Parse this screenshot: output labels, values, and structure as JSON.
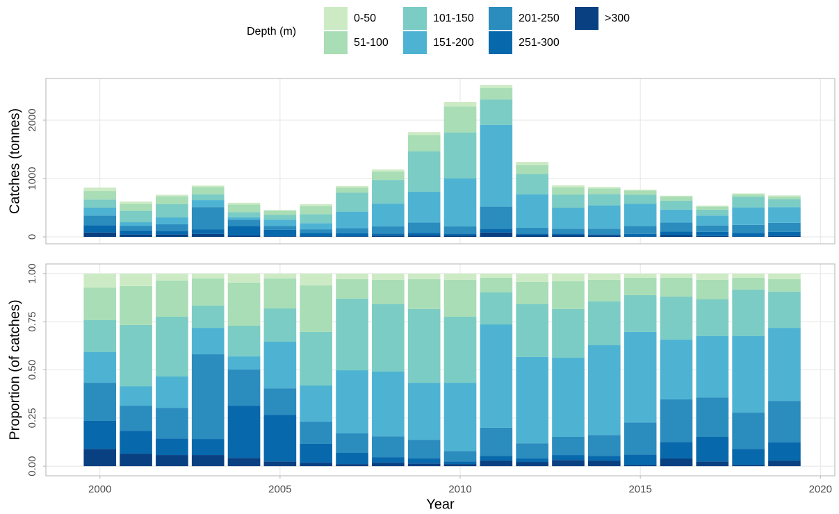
{
  "legend": {
    "title": "Depth (m)"
  },
  "chart_data": [
    {
      "type": "stacked_bar",
      "y_label": "Catches (tonnes)",
      "x": [
        2000,
        2001,
        2002,
        2003,
        2004,
        2005,
        2006,
        2007,
        2008,
        2009,
        2010,
        2011,
        2012,
        2013,
        2014,
        2015,
        2016,
        2017,
        2018,
        2019
      ],
      "xlim": [
        1998.5,
        2020.4
      ],
      "ylim": [
        -119,
        2714
      ],
      "yticks": [
        0,
        1000,
        2000
      ],
      "grid": true,
      "series": [
        {
          "name": "0-50",
          "color": "#ccebc5",
          "values": [
            60,
            40,
            25,
            25,
            30,
            10,
            35,
            25,
            35,
            50,
            75,
            55,
            55,
            35,
            25,
            15,
            15,
            15,
            15,
            20
          ]
        },
        {
          "name": "51-100",
          "color": "#a8ddb5",
          "values": [
            145,
            120,
            135,
            125,
            130,
            75,
            135,
            88,
            145,
            280,
            445,
            195,
            150,
            125,
            95,
            75,
            70,
            55,
            45,
            45
          ]
        },
        {
          "name": "101-150",
          "color": "#7bccc4",
          "values": [
            140,
            195,
            225,
            100,
            90,
            80,
            155,
            323,
            405,
            690,
            790,
            435,
            350,
            225,
            195,
            155,
            155,
            100,
            180,
            135
          ]
        },
        {
          "name": "151-200",
          "color": "#4eb3d3",
          "values": [
            135,
            60,
            120,
            120,
            40,
            110,
            105,
            285,
            390,
            530,
            820,
            1400,
            575,
            360,
            400,
            380,
            220,
            170,
            300,
            270
          ]
        },
        {
          "name": "201-250",
          "color": "#2b8cbe",
          "values": [
            165,
            80,
            115,
            385,
            110,
            65,
            65,
            88,
            125,
            175,
            125,
            380,
            100,
            85,
            95,
            135,
            155,
            110,
            140,
            155
          ]
        },
        {
          "name": "251-300",
          "color": "#0868ac",
          "values": [
            125,
            70,
            60,
            75,
            160,
            110,
            55,
            50,
            35,
            45,
            30,
            65,
            25,
            25,
            20,
            45,
            60,
            70,
            60,
            65
          ]
        },
        {
          "name": ">300",
          "color": "#084081",
          "values": [
            75,
            40,
            40,
            50,
            25,
            10,
            10,
            10,
            20,
            25,
            25,
            75,
            30,
            30,
            25,
            5,
            30,
            15,
            5,
            20
          ]
        }
      ]
    },
    {
      "type": "stacked_bar",
      "y_label": "Proportion (of catches)",
      "x_label": "Year",
      "x": [
        2000,
        2001,
        2002,
        2003,
        2004,
        2005,
        2006,
        2007,
        2008,
        2009,
        2010,
        2011,
        2012,
        2013,
        2014,
        2015,
        2016,
        2017,
        2018,
        2019
      ],
      "xlim": [
        1998.5,
        2020.4
      ],
      "xticks": [
        2000,
        2005,
        2010,
        2015,
        2020
      ],
      "ylim": [
        -0.05,
        1.05
      ],
      "yticks": [
        {
          "value": 0,
          "label": "0.00"
        },
        {
          "value": 0.25,
          "label": "0.25"
        },
        {
          "value": 0.5,
          "label": "0.50"
        },
        {
          "value": 0.75,
          "label": "0.75"
        },
        {
          "value": 1,
          "label": "1.00"
        }
      ],
      "grid": true,
      "series": [
        {
          "name": "0-50",
          "color": "#ccebc5",
          "values": [
            0.072,
            0.065,
            0.036,
            0.025,
            0.047,
            0.025,
            0.061,
            0.029,
            0.032,
            0.029,
            0.032,
            0.022,
            0.043,
            0.04,
            0.032,
            0.022,
            0.022,
            0.032,
            0.022,
            0.029
          ]
        },
        {
          "name": "51-100",
          "color": "#a8ddb5",
          "values": [
            0.17,
            0.202,
            0.188,
            0.141,
            0.224,
            0.156,
            0.242,
            0.101,
            0.127,
            0.155,
            0.192,
            0.075,
            0.116,
            0.144,
            0.112,
            0.09,
            0.097,
            0.102,
            0.061,
            0.065
          ]
        },
        {
          "name": "101-150",
          "color": "#7bccc4",
          "values": [
            0.166,
            0.318,
            0.31,
            0.116,
            0.159,
            0.173,
            0.278,
            0.372,
            0.35,
            0.383,
            0.343,
            0.167,
            0.274,
            0.253,
            0.228,
            0.191,
            0.224,
            0.191,
            0.242,
            0.188
          ]
        },
        {
          "name": "151-200",
          "color": "#4eb3d3",
          "values": [
            0.159,
            0.101,
            0.163,
            0.137,
            0.068,
            0.242,
            0.188,
            0.328,
            0.336,
            0.296,
            0.354,
            0.537,
            0.448,
            0.411,
            0.466,
            0.47,
            0.31,
            0.318,
            0.397,
            0.379
          ]
        },
        {
          "name": "201-250",
          "color": "#2b8cbe",
          "values": [
            0.198,
            0.13,
            0.159,
            0.44,
            0.188,
            0.137,
            0.115,
            0.101,
            0.108,
            0.097,
            0.054,
            0.145,
            0.079,
            0.094,
            0.108,
            0.166,
            0.221,
            0.205,
            0.188,
            0.216
          ]
        },
        {
          "name": "251-300",
          "color": "#0868ac",
          "values": [
            0.145,
            0.119,
            0.086,
            0.083,
            0.271,
            0.242,
            0.098,
            0.058,
            0.029,
            0.026,
            0.014,
            0.025,
            0.018,
            0.026,
            0.025,
            0.054,
            0.086,
            0.127,
            0.083,
            0.094
          ]
        },
        {
          "name": ">300",
          "color": "#084081",
          "values": [
            0.09,
            0.065,
            0.058,
            0.058,
            0.043,
            0.025,
            0.018,
            0.011,
            0.018,
            0.014,
            0.011,
            0.029,
            0.022,
            0.032,
            0.029,
            0.007,
            0.04,
            0.025,
            0.007,
            0.029
          ]
        }
      ]
    }
  ]
}
